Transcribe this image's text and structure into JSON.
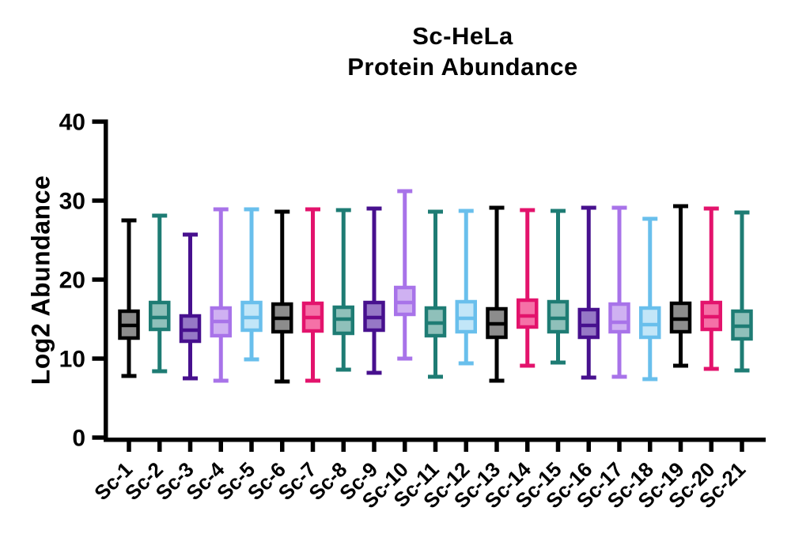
{
  "figure": {
    "title_line1": "Sc-HeLa",
    "title_line2": "Protein Abundance"
  },
  "chart_data": {
    "type": "box",
    "title": "Sc-HeLa Protein Abundance",
    "ylabel": "Log2 Abundance",
    "xlabel": "",
    "ylim": [
      0,
      40
    ],
    "yticks": [
      "0",
      "10",
      "20",
      "30",
      "40"
    ],
    "grid": false,
    "legend": false,
    "categories": [
      "Sc-1",
      "Sc-2",
      "Sc-3",
      "Sc-4",
      "Sc-5",
      "Sc-6",
      "Sc-7",
      "Sc-8",
      "Sc-9",
      "Sc-10",
      "Sc-11",
      "Sc-12",
      "Sc-13",
      "Sc-14",
      "Sc-15",
      "Sc-16",
      "Sc-17",
      "Sc-18",
      "Sc-19",
      "Sc-20",
      "Sc-21"
    ],
    "palette": {
      "gray": {
        "stroke": "#000000",
        "fill": "#8C8C8C"
      },
      "teal": {
        "stroke": "#1E7C74",
        "fill": "#8FC0BA"
      },
      "purple": {
        "stroke": "#47108E",
        "fill": "#9678C6"
      },
      "orchid": {
        "stroke": "#A873E9",
        "fill": "#CFB1F2"
      },
      "skyblue": {
        "stroke": "#69BFEC",
        "fill": "#C2E6F8"
      },
      "crimson": {
        "stroke": "#E3136C",
        "fill": "#F571A7"
      }
    },
    "boxes": [
      {
        "category": "Sc-1",
        "color": "gray",
        "min": 7.8,
        "q1": 12.6,
        "median": 14.2,
        "q3": 16.0,
        "max": 27.5
      },
      {
        "category": "Sc-2",
        "color": "teal",
        "min": 8.4,
        "q1": 13.7,
        "median": 15.2,
        "q3": 17.1,
        "max": 28.1
      },
      {
        "category": "Sc-3",
        "color": "purple",
        "min": 7.5,
        "q1": 12.2,
        "median": 13.6,
        "q3": 15.4,
        "max": 25.7
      },
      {
        "category": "Sc-4",
        "color": "orchid",
        "min": 7.2,
        "q1": 12.9,
        "median": 14.7,
        "q3": 16.4,
        "max": 28.9
      },
      {
        "category": "Sc-5",
        "color": "skyblue",
        "min": 9.9,
        "q1": 13.6,
        "median": 15.2,
        "q3": 17.1,
        "max": 28.9
      },
      {
        "category": "Sc-6",
        "color": "gray",
        "min": 7.1,
        "q1": 13.4,
        "median": 15.1,
        "q3": 16.9,
        "max": 28.6
      },
      {
        "category": "Sc-7",
        "color": "crimson",
        "min": 7.2,
        "q1": 13.5,
        "median": 15.2,
        "q3": 17.0,
        "max": 28.9
      },
      {
        "category": "Sc-8",
        "color": "teal",
        "min": 8.6,
        "q1": 13.2,
        "median": 15.0,
        "q3": 16.5,
        "max": 28.8
      },
      {
        "category": "Sc-9",
        "color": "purple",
        "min": 8.2,
        "q1": 13.6,
        "median": 15.2,
        "q3": 17.1,
        "max": 29.0
      },
      {
        "category": "Sc-10",
        "color": "orchid",
        "min": 10.0,
        "q1": 15.6,
        "median": 17.1,
        "q3": 19.0,
        "max": 31.2
      },
      {
        "category": "Sc-11",
        "color": "teal",
        "min": 7.7,
        "q1": 12.9,
        "median": 14.5,
        "q3": 16.4,
        "max": 28.6
      },
      {
        "category": "Sc-12",
        "color": "skyblue",
        "min": 9.4,
        "q1": 13.4,
        "median": 15.1,
        "q3": 17.2,
        "max": 28.7
      },
      {
        "category": "Sc-13",
        "color": "gray",
        "min": 7.2,
        "q1": 12.7,
        "median": 14.4,
        "q3": 16.3,
        "max": 29.1
      },
      {
        "category": "Sc-14",
        "color": "crimson",
        "min": 9.1,
        "q1": 14.0,
        "median": 15.4,
        "q3": 17.4,
        "max": 28.8
      },
      {
        "category": "Sc-15",
        "color": "teal",
        "min": 9.5,
        "q1": 13.4,
        "median": 15.1,
        "q3": 17.2,
        "max": 28.7
      },
      {
        "category": "Sc-16",
        "color": "purple",
        "min": 7.6,
        "q1": 12.7,
        "median": 14.2,
        "q3": 16.2,
        "max": 29.1
      },
      {
        "category": "Sc-17",
        "color": "orchid",
        "min": 7.7,
        "q1": 13.4,
        "median": 14.6,
        "q3": 16.9,
        "max": 29.1
      },
      {
        "category": "Sc-18",
        "color": "skyblue",
        "min": 7.4,
        "q1": 12.7,
        "median": 14.3,
        "q3": 16.4,
        "max": 27.7
      },
      {
        "category": "Sc-19",
        "color": "gray",
        "min": 9.1,
        "q1": 13.4,
        "median": 15.0,
        "q3": 17.0,
        "max": 29.3
      },
      {
        "category": "Sc-20",
        "color": "crimson",
        "min": 8.7,
        "q1": 13.7,
        "median": 15.3,
        "q3": 17.1,
        "max": 29.0
      },
      {
        "category": "Sc-21",
        "color": "teal",
        "min": 8.5,
        "q1": 12.5,
        "median": 14.1,
        "q3": 16.0,
        "max": 28.5
      }
    ]
  }
}
